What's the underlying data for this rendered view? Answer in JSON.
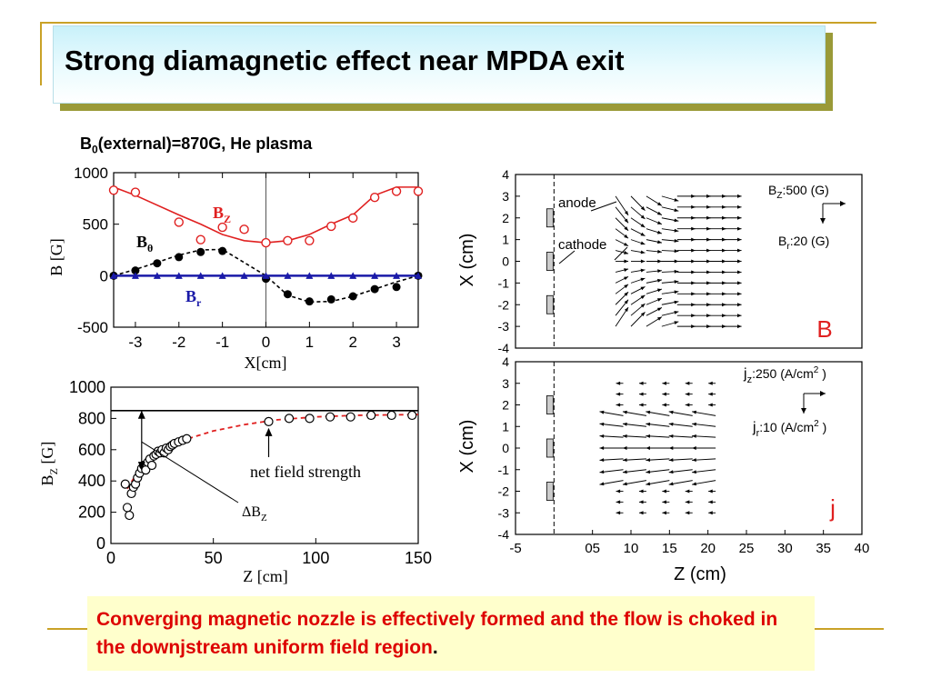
{
  "slide": {
    "title": "Strong diamagnetic effect near MPDA exit",
    "subtitle_b": "B",
    "subtitle_sub": "0",
    "subtitle_rest": "(external)=870G, He plasma",
    "caption": "Converging magnetic nozzle is effectively formed and the flow is choked in the downjstream uniform field region",
    "caption_end": ".",
    "colors": {
      "red": "#e02020",
      "blue": "#1a1aa8",
      "gold": "#c9a227",
      "title_bg": "#c9f1fa",
      "caption_bg": "#ffffcc"
    }
  },
  "chart_data": [
    {
      "type": "scatter",
      "name_panel": "B vs X",
      "ylabel": "B [G]",
      "xlabel": "X[cm]",
      "xlim": [
        -3.5,
        3.5
      ],
      "ylim": [
        -500,
        1000
      ],
      "xticks": [
        -3,
        -2,
        -1,
        0,
        1,
        2,
        3
      ],
      "yticks": [
        1000,
        500,
        0,
        -500
      ],
      "series": [
        {
          "name": "BZ",
          "label_main": "B",
          "label_sub": "Z",
          "color": "#e02020",
          "marker": "open-circle",
          "x": [
            -3.5,
            -3.0,
            -2.0,
            -1.5,
            -1.0,
            -0.5,
            0.0,
            0.5,
            1.0,
            1.5,
            2.0,
            2.5,
            3.0,
            3.5
          ],
          "y": [
            830,
            810,
            520,
            350,
            470,
            450,
            320,
            340,
            340,
            480,
            560,
            760,
            820,
            820
          ],
          "fit_y": [
            860,
            780,
            590,
            500,
            400,
            340,
            320,
            340,
            400,
            500,
            590,
            780,
            860,
            860
          ]
        },
        {
          "name": "Bθ",
          "label_main": "B",
          "label_sub": "θ",
          "color": "#000000",
          "marker": "filled-circle",
          "x": [
            -3.5,
            -3.0,
            -2.5,
            -2.0,
            -1.5,
            -1.0,
            0.0,
            0.5,
            1.0,
            1.5,
            2.0,
            2.5,
            3.0,
            3.5
          ],
          "y": [
            0,
            50,
            120,
            180,
            230,
            240,
            -30,
            -180,
            -250,
            -230,
            -200,
            -130,
            -110,
            0
          ],
          "fit_y": [
            0,
            60,
            130,
            200,
            250,
            255,
            0,
            -190,
            -255,
            -250,
            -200,
            -130,
            -60,
            0
          ]
        },
        {
          "name": "Br",
          "label_main": "B",
          "label_sub": "r",
          "color": "#1a1aa8",
          "marker": "filled-triangle",
          "x": [
            -3.5,
            -3.0,
            -2.5,
            -2.0,
            -1.5,
            -1.0,
            -0.5,
            0.0,
            0.5,
            1.0,
            1.5,
            2.0,
            2.5,
            3.0,
            3.5
          ],
          "y": [
            0,
            0,
            0,
            0,
            0,
            0,
            0,
            0,
            0,
            0,
            0,
            0,
            0,
            0,
            0
          ]
        }
      ]
    },
    {
      "type": "scatter",
      "name_panel": "BZ vs Z",
      "ylabel_main": "B",
      "ylabel_sub": "Z",
      "ylabel_unit": " [G]",
      "xlabel": "Z [cm]",
      "xlim": [
        0,
        150
      ],
      "ylim": [
        0,
        1000
      ],
      "xticks": [
        0,
        50,
        100,
        150
      ],
      "yticks": [
        1000,
        800,
        600,
        400,
        200,
        0
      ],
      "reference_line": 850,
      "annotation_net": "net field strength",
      "annotation_delta": "ΔB",
      "annotation_delta_sub": "Z",
      "series": [
        {
          "name": "measured",
          "marker": "open-circle",
          "color": "#000000",
          "x": [
            7,
            8,
            9,
            10,
            11,
            12,
            13,
            14,
            15,
            16,
            17,
            18,
            19,
            20,
            21,
            22,
            23,
            24,
            25,
            26,
            27,
            28,
            29,
            30,
            31,
            33,
            35,
            37,
            77,
            87,
            97,
            107,
            117,
            127,
            137,
            147
          ],
          "y": [
            380,
            230,
            180,
            320,
            360,
            380,
            420,
            450,
            480,
            500,
            470,
            520,
            540,
            500,
            560,
            570,
            590,
            580,
            600,
            580,
            610,
            600,
            620,
            630,
            640,
            650,
            660,
            670,
            780,
            800,
            800,
            810,
            810,
            820,
            820,
            820
          ]
        },
        {
          "name": "fit",
          "marker": "dashed-line",
          "color": "#e02020",
          "x": [
            8,
            15,
            25,
            35,
            50,
            65,
            80,
            100,
            120,
            150
          ],
          "y": [
            350,
            500,
            600,
            660,
            720,
            760,
            790,
            810,
            820,
            825
          ]
        }
      ]
    },
    {
      "type": "vector",
      "name_panel": "B",
      "ylabel": "X (cm)",
      "ylim": [
        -4,
        4
      ],
      "xlim": [
        -5,
        40
      ],
      "yticks": [
        4,
        3,
        2,
        1,
        0,
        -1,
        -2,
        -3,
        -4
      ],
      "panel_letter": "B",
      "panel_letter_color": "#e02020",
      "label_anode": "anode",
      "label_cathode": "cathode",
      "legend_z_main": "B",
      "legend_z_sub": "Z",
      "legend_z_text": ":500 (G)",
      "legend_r_main": "B",
      "legend_r_sub": "r",
      "legend_r_text": ":20 (G)"
    },
    {
      "type": "vector",
      "name_panel": "j",
      "ylabel": "X (cm)",
      "xlabel": "Z (cm)",
      "ylim": [
        -4,
        4
      ],
      "xlim": [
        -5,
        40
      ],
      "yticks": [
        4,
        3,
        2,
        1,
        0,
        -1,
        -2,
        -3,
        -4
      ],
      "xticks": [
        "-5",
        "05",
        "10",
        "15",
        "20",
        "25",
        "30",
        "35",
        "40"
      ],
      "panel_letter": "j",
      "panel_letter_color": "#e02020",
      "legend_z_main": "j",
      "legend_z_sub": "z",
      "legend_z_text": ":250 (A/cm",
      "legend_z_sup": "2",
      "legend_z_close": " )",
      "legend_r_main": "j",
      "legend_r_sub": "r",
      "legend_r_text": ":10 (A/cm",
      "legend_r_sup": "2",
      "legend_r_close": " )"
    }
  ]
}
